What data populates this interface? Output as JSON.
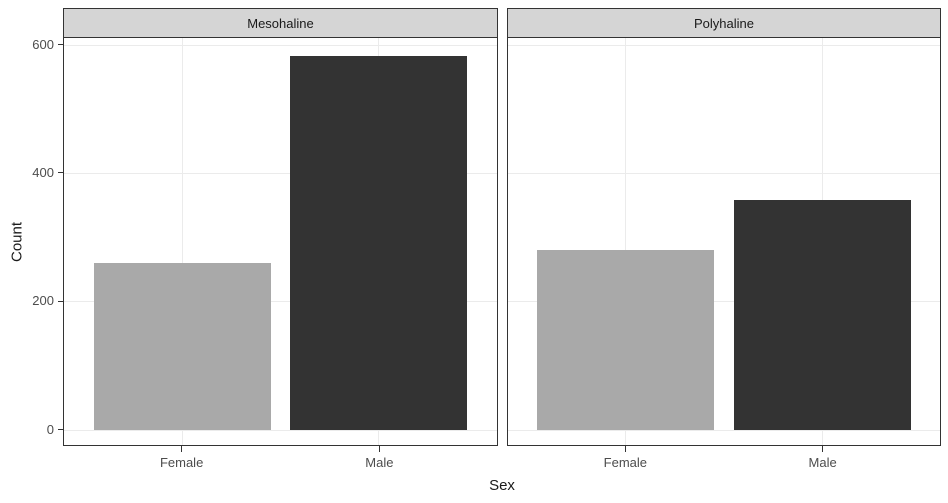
{
  "chart_data": {
    "type": "bar",
    "title": "",
    "xlabel": "Sex",
    "ylabel": "Count",
    "categories": [
      "Female",
      "Male"
    ],
    "facets": [
      {
        "label": "Mesohaline",
        "values": [
          260,
          582
        ]
      },
      {
        "label": "Polyhaline",
        "values": [
          280,
          358
        ]
      }
    ],
    "ylim": [
      0,
      600
    ],
    "yticks": [
      0,
      200,
      400,
      600
    ],
    "ytick_labels": [
      "0",
      "200",
      "400",
      "600"
    ],
    "grid": "major-only",
    "legend": "none",
    "bar_colors": {
      "Female": "#a9a9a9",
      "Male": "#333333"
    },
    "style": {
      "strip_bg": "#d5d5d5",
      "panel_border": "#333333",
      "grid_color": "#ebebeb",
      "tick_label_color": "#4d4d4d",
      "axis_title_color": "#1a1a1a",
      "panel_bg": "#ffffff"
    }
  }
}
